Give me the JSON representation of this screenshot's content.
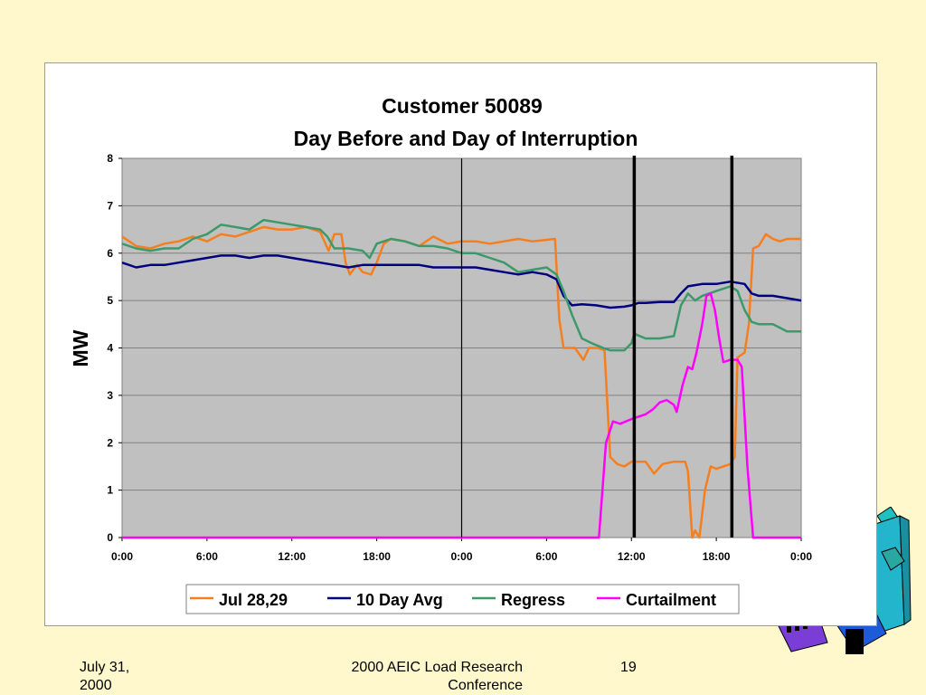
{
  "slide": {
    "footer_date_line1": "July 31,",
    "footer_date_line2": "2000",
    "footer_conf_line1": "2000 AEIC Load Research",
    "footer_conf_line2": "Conference",
    "page_number": "19"
  },
  "colors": {
    "background": "#FFF8CC",
    "plot_area": "#C0C0C0",
    "jul": "#F57F1E",
    "avg": "#000080",
    "regress": "#3C9A6A",
    "curtailment": "#FF00FF"
  },
  "chart_data": {
    "type": "line",
    "title": "Customer 50089",
    "subtitle": "Day Before and Day of Interruption",
    "xlabel": "",
    "ylabel": "MW",
    "ylim": [
      0,
      8
    ],
    "yticks": [
      "0",
      "1",
      "2",
      "3",
      "4",
      "5",
      "6",
      "7",
      "8"
    ],
    "xlim": [
      0,
      48
    ],
    "xticks": [
      "0:00",
      "6:00",
      "12:00",
      "18:00",
      "0:00",
      "6:00",
      "12:00",
      "18:00",
      "0:00"
    ],
    "grid": true,
    "legend_position": "bottom",
    "vertical_markers": [
      {
        "x": 24,
        "style": "thin"
      },
      {
        "x": 36.2,
        "style": "thick"
      },
      {
        "x": 43.1,
        "style": "thick"
      }
    ],
    "series": [
      {
        "name": "Jul 28,29",
        "color": "#F57F1E",
        "points": [
          [
            0,
            6.35
          ],
          [
            1,
            6.15
          ],
          [
            2,
            6.1
          ],
          [
            3,
            6.2
          ],
          [
            4,
            6.25
          ],
          [
            5,
            6.35
          ],
          [
            6,
            6.25
          ],
          [
            7,
            6.4
          ],
          [
            8,
            6.35
          ],
          [
            9,
            6.45
          ],
          [
            10,
            6.55
          ],
          [
            11,
            6.5
          ],
          [
            12,
            6.5
          ],
          [
            13,
            6.55
          ],
          [
            14,
            6.45
          ],
          [
            14.6,
            6.05
          ],
          [
            15,
            6.4
          ],
          [
            15.5,
            6.4
          ],
          [
            15.8,
            5.8
          ],
          [
            16.1,
            5.55
          ],
          [
            16.6,
            5.75
          ],
          [
            17,
            5.6
          ],
          [
            17.6,
            5.55
          ],
          [
            18,
            5.8
          ],
          [
            18.5,
            6.2
          ],
          [
            19,
            6.3
          ],
          [
            20,
            6.25
          ],
          [
            21,
            6.15
          ],
          [
            22,
            6.35
          ],
          [
            23,
            6.2
          ],
          [
            24,
            6.25
          ],
          [
            25,
            6.25
          ],
          [
            26,
            6.2
          ],
          [
            27,
            6.25
          ],
          [
            28,
            6.3
          ],
          [
            29,
            6.25
          ],
          [
            30.6,
            6.3
          ],
          [
            30.9,
            4.6
          ],
          [
            31.2,
            4.0
          ],
          [
            32,
            4.0
          ],
          [
            32.6,
            3.75
          ],
          [
            33,
            4.0
          ],
          [
            33.6,
            4.0
          ],
          [
            34.1,
            3.95
          ],
          [
            34.5,
            1.7
          ],
          [
            35,
            1.55
          ],
          [
            35.5,
            1.5
          ],
          [
            36,
            1.6
          ],
          [
            37,
            1.6
          ],
          [
            37.6,
            1.35
          ],
          [
            38.2,
            1.55
          ],
          [
            39,
            1.6
          ],
          [
            39.8,
            1.6
          ],
          [
            40,
            1.4
          ],
          [
            40.3,
            0.0
          ],
          [
            40.5,
            0.15
          ],
          [
            40.8,
            0.0
          ],
          [
            41.2,
            1.0
          ],
          [
            41.6,
            1.5
          ],
          [
            42,
            1.45
          ],
          [
            42.5,
            1.5
          ],
          [
            43,
            1.55
          ],
          [
            43.3,
            1.7
          ],
          [
            43.5,
            3.8
          ],
          [
            44,
            3.9
          ],
          [
            44.3,
            4.5
          ],
          [
            44.6,
            6.1
          ],
          [
            45,
            6.15
          ],
          [
            45.5,
            6.4
          ],
          [
            46,
            6.3
          ],
          [
            46.5,
            6.25
          ],
          [
            47,
            6.3
          ],
          [
            48,
            6.3
          ]
        ]
      },
      {
        "name": "10 Day Avg",
        "color": "#000080",
        "points": [
          [
            0,
            5.8
          ],
          [
            1,
            5.7
          ],
          [
            2,
            5.75
          ],
          [
            3,
            5.75
          ],
          [
            4,
            5.8
          ],
          [
            5,
            5.85
          ],
          [
            6,
            5.9
          ],
          [
            7,
            5.95
          ],
          [
            8,
            5.95
          ],
          [
            9,
            5.9
          ],
          [
            10,
            5.95
          ],
          [
            11,
            5.95
          ],
          [
            12,
            5.9
          ],
          [
            13,
            5.85
          ],
          [
            14,
            5.8
          ],
          [
            15,
            5.75
          ],
          [
            16,
            5.7
          ],
          [
            17,
            5.75
          ],
          [
            18,
            5.75
          ],
          [
            19,
            5.75
          ],
          [
            20,
            5.75
          ],
          [
            21,
            5.75
          ],
          [
            22,
            5.7
          ],
          [
            23,
            5.7
          ],
          [
            24,
            5.7
          ],
          [
            25,
            5.7
          ],
          [
            26,
            5.65
          ],
          [
            27,
            5.6
          ],
          [
            28,
            5.55
          ],
          [
            29,
            5.6
          ],
          [
            30,
            5.55
          ],
          [
            30.7,
            5.45
          ],
          [
            31.2,
            5.1
          ],
          [
            31.8,
            4.9
          ],
          [
            32.5,
            4.92
          ],
          [
            33.5,
            4.9
          ],
          [
            34.5,
            4.85
          ],
          [
            35.5,
            4.87
          ],
          [
            36,
            4.9
          ],
          [
            36.5,
            4.95
          ],
          [
            37,
            4.95
          ],
          [
            38,
            4.97
          ],
          [
            39,
            4.97
          ],
          [
            39.5,
            5.15
          ],
          [
            40,
            5.3
          ],
          [
            41,
            5.35
          ],
          [
            42,
            5.35
          ],
          [
            43,
            5.4
          ],
          [
            44,
            5.35
          ],
          [
            44.5,
            5.15
          ],
          [
            45,
            5.1
          ],
          [
            46,
            5.1
          ],
          [
            47,
            5.05
          ],
          [
            48,
            5.0
          ]
        ]
      },
      {
        "name": "Regress",
        "color": "#3C9A6A",
        "points": [
          [
            0,
            6.2
          ],
          [
            1,
            6.1
          ],
          [
            2,
            6.05
          ],
          [
            3,
            6.1
          ],
          [
            4,
            6.1
          ],
          [
            5,
            6.3
          ],
          [
            6,
            6.4
          ],
          [
            7,
            6.6
          ],
          [
            8,
            6.55
          ],
          [
            9,
            6.5
          ],
          [
            10,
            6.7
          ],
          [
            11,
            6.65
          ],
          [
            12,
            6.6
          ],
          [
            13,
            6.55
          ],
          [
            14,
            6.5
          ],
          [
            14.5,
            6.35
          ],
          [
            15,
            6.1
          ],
          [
            16,
            6.1
          ],
          [
            17,
            6.05
          ],
          [
            17.5,
            5.9
          ],
          [
            18,
            6.2
          ],
          [
            19,
            6.3
          ],
          [
            20,
            6.25
          ],
          [
            21,
            6.15
          ],
          [
            22,
            6.15
          ],
          [
            23,
            6.1
          ],
          [
            24,
            6.0
          ],
          [
            25,
            6.0
          ],
          [
            26,
            5.9
          ],
          [
            27,
            5.8
          ],
          [
            28,
            5.6
          ],
          [
            29,
            5.65
          ],
          [
            30,
            5.7
          ],
          [
            30.7,
            5.55
          ],
          [
            31.2,
            5.2
          ],
          [
            31.8,
            4.7
          ],
          [
            32.5,
            4.2
          ],
          [
            33.2,
            4.1
          ],
          [
            34,
            4.0
          ],
          [
            34.5,
            3.95
          ],
          [
            35.5,
            3.95
          ],
          [
            36,
            4.1
          ],
          [
            36.2,
            4.3
          ],
          [
            37,
            4.2
          ],
          [
            38,
            4.2
          ],
          [
            39,
            4.25
          ],
          [
            39.5,
            4.9
          ],
          [
            40,
            5.15
          ],
          [
            40.5,
            5.0
          ],
          [
            41,
            5.1
          ],
          [
            42,
            5.2
          ],
          [
            43,
            5.3
          ],
          [
            43.5,
            5.2
          ],
          [
            44,
            4.8
          ],
          [
            44.5,
            4.55
          ],
          [
            45,
            4.5
          ],
          [
            46,
            4.5
          ],
          [
            47,
            4.35
          ],
          [
            48,
            4.35
          ]
        ]
      },
      {
        "name": "Curtailment",
        "color": "#FF00FF",
        "points": [
          [
            0,
            0
          ],
          [
            33.7,
            0
          ],
          [
            34.2,
            2.0
          ],
          [
            34.7,
            2.45
          ],
          [
            35.2,
            2.4
          ],
          [
            36,
            2.5
          ],
          [
            36.5,
            2.55
          ],
          [
            37,
            2.6
          ],
          [
            37.5,
            2.7
          ],
          [
            38,
            2.85
          ],
          [
            38.5,
            2.9
          ],
          [
            39,
            2.8
          ],
          [
            39.2,
            2.65
          ],
          [
            39.6,
            3.2
          ],
          [
            40,
            3.6
          ],
          [
            40.3,
            3.55
          ],
          [
            40.6,
            3.9
          ],
          [
            41,
            4.5
          ],
          [
            41.3,
            5.1
          ],
          [
            41.6,
            5.15
          ],
          [
            41.9,
            4.8
          ],
          [
            42.2,
            4.2
          ],
          [
            42.5,
            3.7
          ],
          [
            43,
            3.75
          ],
          [
            43.5,
            3.75
          ],
          [
            43.8,
            3.6
          ],
          [
            44.2,
            1.5
          ],
          [
            44.6,
            0
          ],
          [
            48,
            0
          ]
        ]
      }
    ]
  }
}
